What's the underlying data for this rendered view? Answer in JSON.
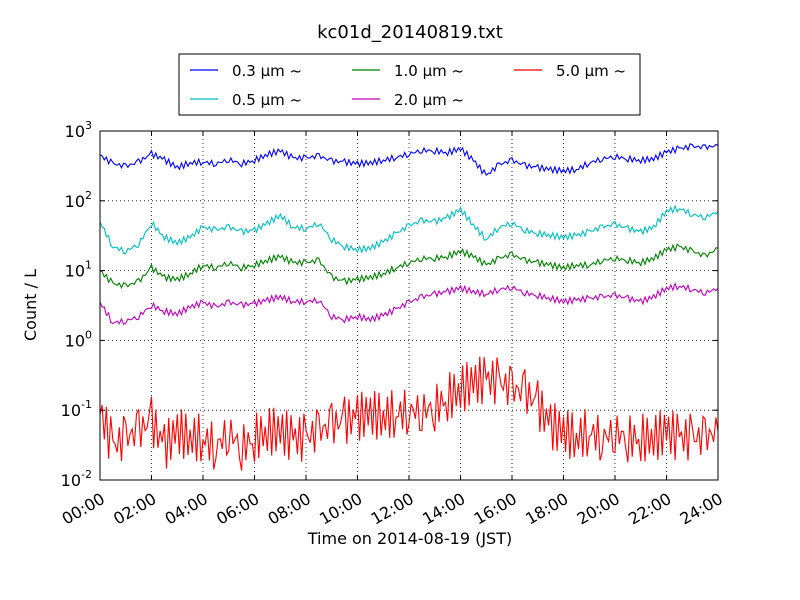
{
  "chart_data": {
    "type": "line",
    "title": "kc01d_20140819.txt",
    "xlabel": "Time on 2014-08-19 (JST)",
    "ylabel": "Count / L",
    "y_scale": "log",
    "ylim": [
      0.01,
      1000
    ],
    "y_ticks": [
      {
        "value": 0.01,
        "base": "10",
        "exp": "-2"
      },
      {
        "value": 0.1,
        "base": "10",
        "exp": "-1"
      },
      {
        "value": 1,
        "base": "10",
        "exp": "0"
      },
      {
        "value": 10,
        "base": "10",
        "exp": "1"
      },
      {
        "value": 100,
        "base": "10",
        "exp": "2"
      },
      {
        "value": 1000,
        "base": "10",
        "exp": "3"
      }
    ],
    "x_ticks": [
      "00:00",
      "02:00",
      "04:00",
      "06:00",
      "08:00",
      "10:00",
      "12:00",
      "14:00",
      "16:00",
      "18:00",
      "20:00",
      "22:00",
      "24:00"
    ],
    "x_range_hours": [
      0,
      24
    ],
    "grid": true,
    "legend_position": "top-center",
    "series": [
      {
        "name": "0.3 μm ~",
        "color": "#0000ff",
        "x": [
          0,
          0.5,
          1,
          1.5,
          2,
          2.5,
          3,
          3.5,
          4,
          4.5,
          5,
          5.5,
          6,
          6.5,
          7,
          7.5,
          8,
          8.5,
          9,
          9.5,
          10,
          10.5,
          11,
          11.5,
          12,
          12.5,
          13,
          13.5,
          14,
          14.5,
          15,
          15.5,
          16,
          16.5,
          17,
          17.5,
          18,
          18.5,
          19,
          19.5,
          20,
          20.5,
          21,
          21.5,
          22,
          22.5,
          23,
          23.5,
          24
        ],
        "values": [
          450,
          340,
          310,
          360,
          470,
          390,
          300,
          350,
          360,
          340,
          390,
          340,
          380,
          460,
          520,
          410,
          410,
          440,
          370,
          360,
          340,
          350,
          380,
          420,
          470,
          530,
          520,
          490,
          560,
          380,
          230,
          330,
          380,
          320,
          300,
          280,
          270,
          280,
          350,
          400,
          430,
          400,
          380,
          400,
          500,
          560,
          600,
          580,
          620
        ]
      },
      {
        "name": "0.5 μm ~",
        "color": "#00bfbf",
        "x": [
          0,
          0.5,
          1,
          1.5,
          2,
          2.5,
          3,
          3.5,
          4,
          4.5,
          5,
          5.5,
          6,
          6.5,
          7,
          7.5,
          8,
          8.5,
          9,
          9.5,
          10,
          10.5,
          11,
          11.5,
          12,
          12.5,
          13,
          13.5,
          14,
          14.5,
          15,
          15.5,
          16,
          16.5,
          17,
          17.5,
          18,
          18.5,
          19,
          19.5,
          20,
          20.5,
          21,
          21.5,
          22,
          22.5,
          23,
          23.5,
          24
        ],
        "values": [
          50,
          22,
          19,
          24,
          48,
          30,
          25,
          30,
          42,
          38,
          42,
          36,
          38,
          48,
          62,
          42,
          40,
          48,
          28,
          22,
          20,
          21,
          26,
          34,
          44,
          52,
          50,
          58,
          75,
          45,
          28,
          42,
          48,
          38,
          34,
          32,
          30,
          32,
          36,
          42,
          46,
          40,
          36,
          42,
          72,
          78,
          64,
          58,
          70
        ]
      },
      {
        "name": "1.0 μm ~",
        "color": "#008000",
        "x": [
          0,
          0.5,
          1,
          1.5,
          2,
          2.5,
          3,
          3.5,
          4,
          4.5,
          5,
          5.5,
          6,
          6.5,
          7,
          7.5,
          8,
          8.5,
          9,
          9.5,
          10,
          10.5,
          11,
          11.5,
          12,
          12.5,
          13,
          13.5,
          14,
          14.5,
          15,
          15.5,
          16,
          16.5,
          17,
          17.5,
          18,
          18.5,
          19,
          19.5,
          20,
          20.5,
          21,
          21.5,
          22,
          22.5,
          23,
          23.5,
          24
        ],
        "values": [
          10,
          6.5,
          6,
          7,
          11,
          8,
          7.5,
          9,
          12,
          11,
          13,
          11,
          12,
          14,
          16,
          13,
          13,
          14,
          8,
          7,
          7.5,
          8,
          9,
          11,
          13,
          15,
          15,
          16,
          19,
          16,
          12,
          15,
          17,
          14,
          13,
          12,
          11,
          12,
          12,
          14,
          15,
          14,
          13,
          15,
          20,
          22,
          19,
          16,
          21
        ]
      },
      {
        "name": "2.0 μm ~",
        "color": "#bf00bf",
        "x": [
          0,
          0.5,
          1,
          1.5,
          2,
          2.5,
          3,
          3.5,
          4,
          4.5,
          5,
          5.5,
          6,
          6.5,
          7,
          7.5,
          8,
          8.5,
          9,
          9.5,
          10,
          10.5,
          11,
          11.5,
          12,
          12.5,
          13,
          13.5,
          14,
          14.5,
          15,
          15.5,
          16,
          16.5,
          17,
          17.5,
          18,
          18.5,
          19,
          19.5,
          20,
          20.5,
          21,
          21.5,
          22,
          22.5,
          23,
          23.5,
          24
        ],
        "values": [
          3.5,
          1.8,
          1.9,
          2.2,
          3.2,
          2.6,
          2.4,
          3.0,
          3.5,
          3.0,
          3.5,
          3.2,
          3.4,
          3.8,
          4.2,
          3.6,
          3.6,
          3.8,
          2.2,
          2.0,
          2.2,
          2.0,
          2.3,
          2.8,
          3.5,
          4.2,
          4.6,
          5.0,
          5.6,
          5.0,
          4.6,
          5.4,
          5.8,
          4.8,
          4.4,
          4.0,
          3.6,
          3.8,
          4.0,
          4.2,
          4.4,
          4.0,
          3.6,
          4.2,
          5.6,
          6.0,
          5.4,
          4.8,
          5.6
        ]
      },
      {
        "name": "5.0 μm ~",
        "color": "#ff0000",
        "x": [
          0,
          0.5,
          1,
          1.5,
          2,
          2.5,
          3,
          3.5,
          4,
          4.5,
          5,
          5.5,
          6,
          6.5,
          7,
          7.5,
          8,
          8.5,
          9,
          9.5,
          10,
          10.5,
          11,
          11.5,
          12,
          12.5,
          13,
          13.5,
          14,
          14.5,
          15,
          15.5,
          16,
          16.5,
          17,
          17.5,
          18,
          18.5,
          19,
          19.5,
          20,
          20.5,
          21,
          21.5,
          22,
          22.5,
          23,
          23.5,
          24
        ],
        "values": [
          0.1,
          0.03,
          0.04,
          0.05,
          0.07,
          0.03,
          0.05,
          0.04,
          0.04,
          0.03,
          0.05,
          0.03,
          0.04,
          0.05,
          0.05,
          0.04,
          0.04,
          0.05,
          0.06,
          0.07,
          0.08,
          0.09,
          0.08,
          0.09,
          0.1,
          0.1,
          0.11,
          0.15,
          0.2,
          0.25,
          0.28,
          0.25,
          0.2,
          0.18,
          0.12,
          0.06,
          0.05,
          0.04,
          0.05,
          0.04,
          0.05,
          0.04,
          0.04,
          0.04,
          0.05,
          0.04,
          0.04,
          0.04,
          0.05
        ]
      }
    ]
  }
}
